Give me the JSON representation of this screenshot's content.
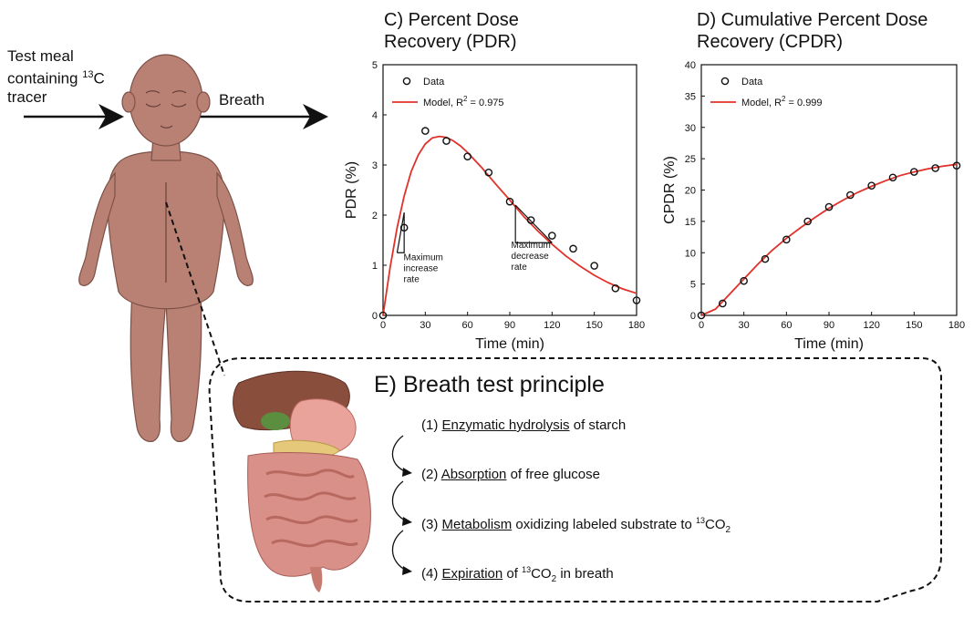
{
  "left": {
    "meal_line1": "Test meal",
    "meal_line2": "containing",
    "meal_sup": "13",
    "meal_c": "C",
    "meal_line3": "tracer",
    "breath": "Breath"
  },
  "panelC": {
    "title_line1": "C) Percent Dose",
    "title_line2": "Recovery (PDR)"
  },
  "panelD": {
    "title_line1": "D) Cumulative Percent Dose",
    "title_line2": "Recovery (CPDR)"
  },
  "panelE": {
    "title": "E) Breath test principle",
    "steps": [
      {
        "num": "(1)",
        "term": "Enzymatic hydrolysis",
        "rest": "of starch"
      },
      {
        "num": "(2)",
        "term": "Absorption",
        "rest": "of free glucose"
      },
      {
        "num": "(3)",
        "term": "Metabolism",
        "rest": "oxidizing labeled substrate to",
        "sup": "13",
        "tail": "CO",
        "sub": "2"
      },
      {
        "num": "(4)",
        "term": "Expiration",
        "rest": "of",
        "sup": "13",
        "tail": "CO",
        "sub": "2",
        "after": "in breath"
      }
    ]
  },
  "chart_data": [
    {
      "type": "scatter",
      "title": "C) Percent Dose Recovery (PDR)",
      "xlabel": "Time (min)",
      "ylabel": "PDR (%)",
      "xlim": [
        0,
        180
      ],
      "ylim": [
        0,
        5
      ],
      "xticks": [
        0,
        30,
        60,
        90,
        120,
        150,
        180
      ],
      "yticks": [
        0,
        1,
        2,
        3,
        4,
        5
      ],
      "legend": {
        "placement": "top-left",
        "data_label": "Data",
        "model_label": "Model, R",
        "model_r2": "2",
        "model_val": " = 0.975"
      },
      "series": [
        {
          "name": "Data",
          "x": [
            0,
            15,
            30,
            45,
            60,
            75,
            90,
            105,
            120,
            135,
            150,
            165,
            180
          ],
          "y": [
            0.0,
            1.75,
            3.68,
            3.48,
            3.17,
            2.85,
            2.27,
            1.9,
            1.59,
            1.33,
            0.99,
            0.54,
            0.3
          ]
        },
        {
          "name": "Model, R2 = 0.975",
          "x": [
            0,
            5,
            10,
            15,
            20,
            25,
            30,
            35,
            40,
            45,
            50,
            55,
            60,
            70,
            80,
            90,
            100,
            110,
            120,
            130,
            140,
            150,
            160,
            170,
            180
          ],
          "y": [
            0,
            0.95,
            1.75,
            2.38,
            2.87,
            3.2,
            3.42,
            3.54,
            3.57,
            3.55,
            3.48,
            3.38,
            3.25,
            2.95,
            2.62,
            2.3,
            1.97,
            1.68,
            1.42,
            1.18,
            0.98,
            0.8,
            0.65,
            0.53,
            0.44
          ]
        }
      ],
      "annotations": [
        {
          "text": [
            "Maximum",
            "increase",
            "rate"
          ],
          "x": 12,
          "y": 1.1
        },
        {
          "text": [
            "Maximum",
            "decrease",
            "rate"
          ],
          "x": 91,
          "y": 1.35
        }
      ]
    },
    {
      "type": "scatter",
      "title": "D) Cumulative Percent Dose Recovery (CPDR)",
      "xlabel": "Time (min)",
      "ylabel": "CPDR (%)",
      "xlim": [
        0,
        180
      ],
      "ylim": [
        0,
        40
      ],
      "xticks": [
        0,
        30,
        60,
        90,
        120,
        150,
        180
      ],
      "yticks": [
        0,
        5,
        10,
        15,
        20,
        25,
        30,
        35,
        40
      ],
      "legend": {
        "placement": "top-left",
        "data_label": "Data",
        "model_label": "Model, R",
        "model_r2": "2",
        "model_val": " = 0.999"
      },
      "series": [
        {
          "name": "Data",
          "x": [
            0,
            15,
            30,
            45,
            60,
            75,
            90,
            105,
            120,
            135,
            150,
            165,
            180
          ],
          "y": [
            0.0,
            1.9,
            5.5,
            9.0,
            12.1,
            15.0,
            17.3,
            19.2,
            20.7,
            22.0,
            22.9,
            23.5,
            23.9
          ]
        },
        {
          "name": "Model, R2 = 0.999",
          "x": [
            0,
            10,
            20,
            30,
            40,
            50,
            60,
            70,
            80,
            90,
            100,
            110,
            120,
            130,
            140,
            150,
            160,
            170,
            180
          ],
          "y": [
            0,
            1.0,
            3.4,
            5.8,
            8.2,
            10.4,
            12.3,
            14.0,
            15.6,
            17.1,
            18.4,
            19.6,
            20.6,
            21.5,
            22.3,
            22.9,
            23.4,
            23.8,
            24.1
          ]
        }
      ]
    }
  ]
}
